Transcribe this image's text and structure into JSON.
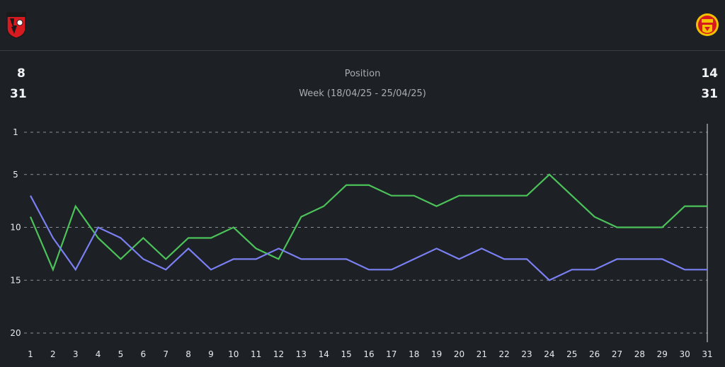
{
  "header": {
    "home_crest": "afc-bournemouth-crest-icon",
    "away_crest": "manchester-united-crest-icon"
  },
  "stats": {
    "left_top": "8",
    "left_bottom": "31",
    "right_top": "14",
    "right_bottom": "31",
    "title": "Position",
    "subtitle": "Week (18/04/25 - 25/04/25)"
  },
  "chart_data": {
    "type": "line",
    "title": "Position",
    "x": [
      1,
      2,
      3,
      4,
      5,
      6,
      7,
      8,
      9,
      10,
      11,
      12,
      13,
      14,
      15,
      16,
      17,
      18,
      19,
      20,
      21,
      22,
      23,
      24,
      25,
      26,
      27,
      28,
      29,
      30,
      31
    ],
    "y_ticks": [
      1,
      5,
      10,
      15,
      20
    ],
    "ylim": [
      1,
      20
    ],
    "y_inverted": true,
    "grid": true,
    "series": [
      {
        "color": "#4cc35a",
        "values": [
          9,
          14,
          8,
          11,
          13,
          11,
          13,
          11,
          11,
          10,
          12,
          13,
          9,
          8,
          6,
          6,
          7,
          7,
          8,
          7,
          7,
          7,
          7,
          5,
          7,
          9,
          10,
          10,
          10,
          8,
          8
        ]
      },
      {
        "color": "#7a7ff2",
        "values": [
          7,
          11,
          14,
          10,
          11,
          13,
          14,
          12,
          14,
          13,
          13,
          12,
          13,
          13,
          13,
          14,
          14,
          13,
          12,
          13,
          12,
          13,
          13,
          15,
          14,
          14,
          13,
          13,
          13,
          14,
          14
        ]
      }
    ]
  }
}
